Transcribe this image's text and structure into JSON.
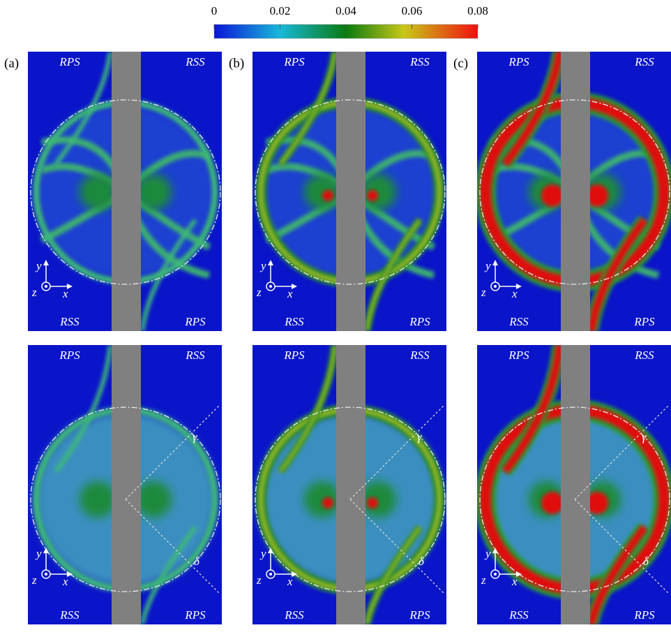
{
  "colorbar": {
    "range": [
      0,
      0.08
    ],
    "ticks": [
      0,
      0.02,
      0.04,
      0.06,
      0.08
    ]
  },
  "panels": [
    {
      "label": "(a)",
      "top_left": "RPS",
      "top_right": "RSS",
      "bottom_left": "RSS",
      "bottom_right": "RPS",
      "axis_y": "y",
      "axis_z": "z",
      "axis_x": "x"
    },
    {
      "label": "(b)",
      "top_left": "RPS",
      "top_right": "RSS",
      "bottom_left": "RSS",
      "bottom_right": "RPS",
      "axis_y": "y",
      "axis_z": "z",
      "axis_x": "x"
    },
    {
      "label": "(c)",
      "top_left": "RPS",
      "top_right": "RSS",
      "bottom_left": "RSS",
      "bottom_right": "RPS",
      "axis_y": "y",
      "axis_z": "z",
      "axis_x": "x"
    },
    {
      "top_left": "RPS",
      "top_right": "RSS",
      "bottom_left": "RSS",
      "bottom_right": "RPS",
      "axis_y": "y",
      "axis_z": "z",
      "axis_x": "x",
      "gamma": "γ",
      "delta": "δ"
    },
    {
      "top_left": "RPS",
      "top_right": "RSS",
      "bottom_left": "RSS",
      "bottom_right": "RPS",
      "axis_y": "y",
      "axis_z": "z",
      "axis_x": "x",
      "gamma": "γ",
      "delta": "δ"
    },
    {
      "top_left": "RPS",
      "top_right": "RSS",
      "bottom_left": "RSS",
      "bottom_right": "RPS",
      "axis_y": "y",
      "axis_z": "z",
      "axis_x": "x",
      "gamma": "γ",
      "delta": "δ"
    }
  ]
}
